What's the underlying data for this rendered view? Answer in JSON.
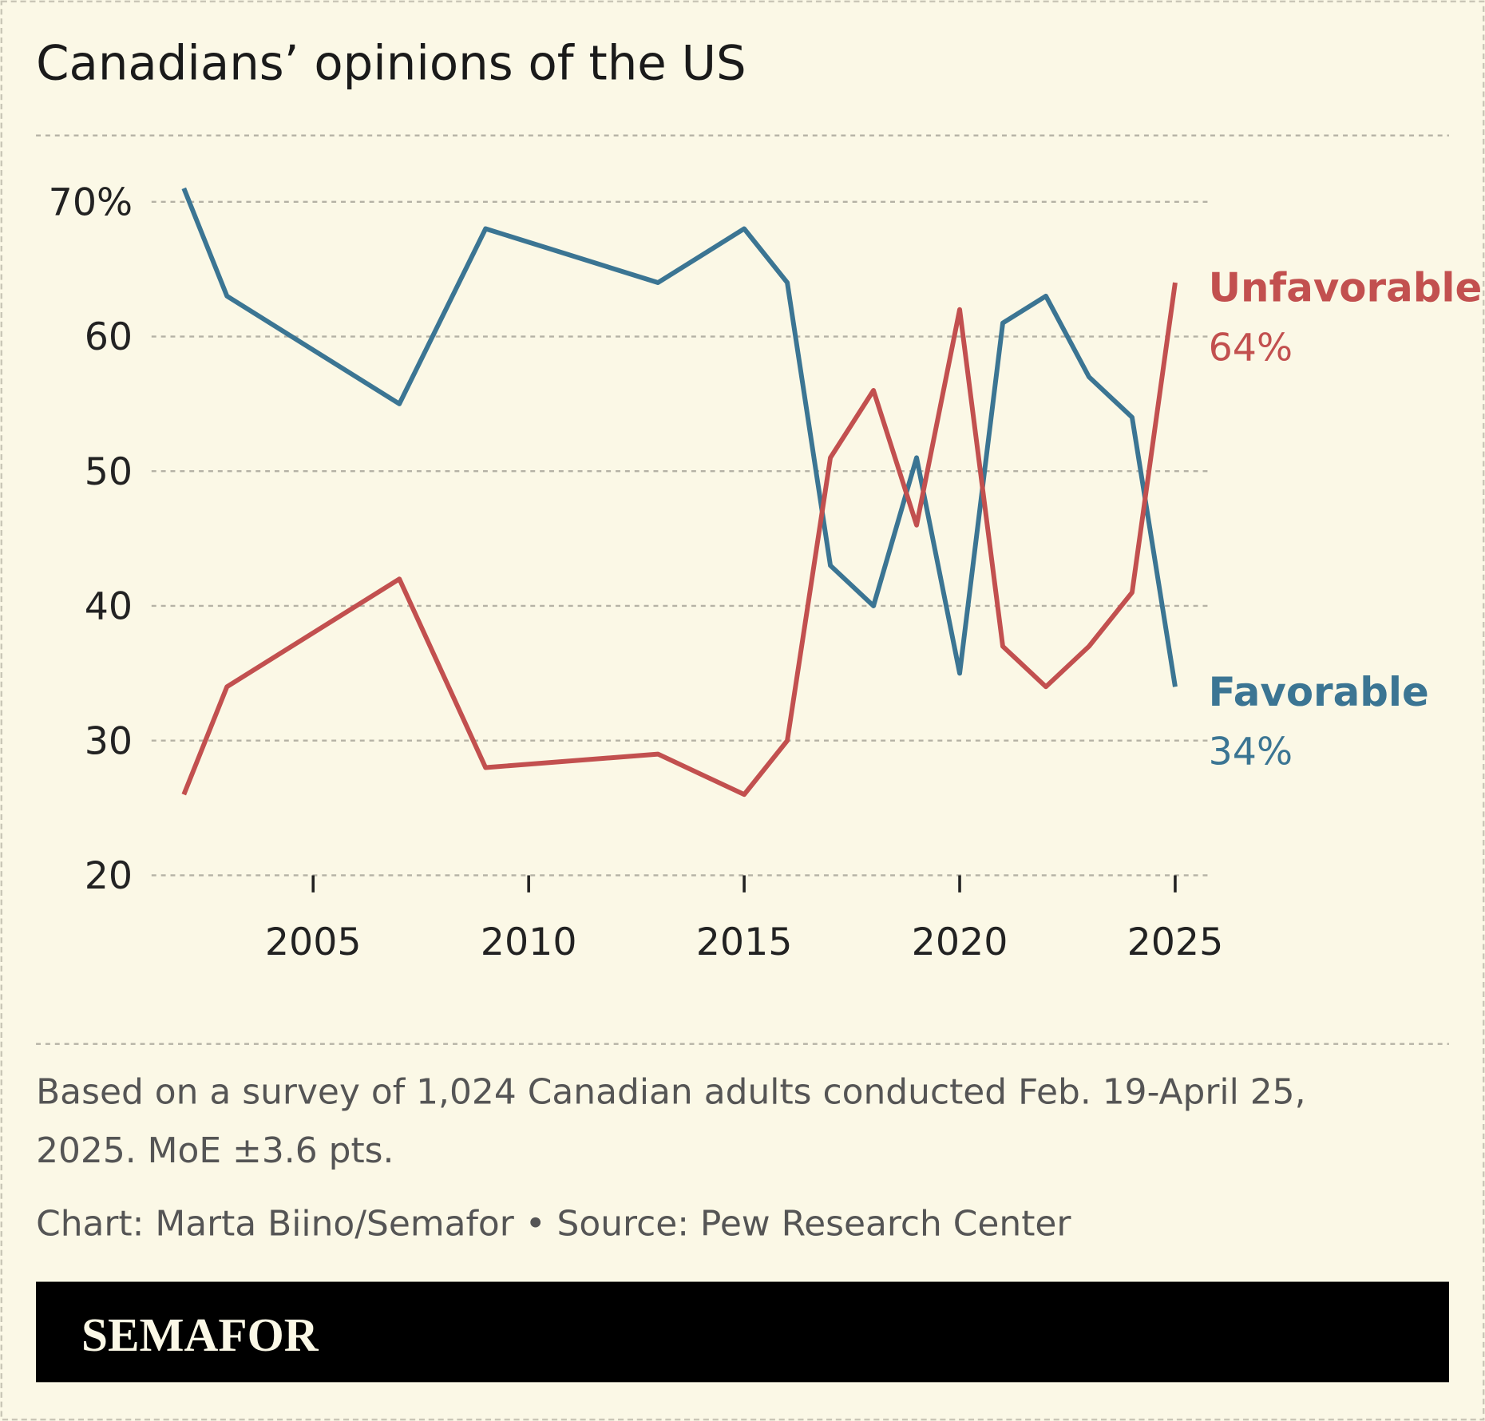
{
  "chart_data": {
    "type": "line",
    "title": "Canadians’ opinions of the US",
    "x": [
      2002,
      2003,
      2007,
      2009,
      2013,
      2015,
      2016,
      2017,
      2018,
      2019,
      2020,
      2021,
      2022,
      2023,
      2024,
      2025
    ],
    "series": [
      {
        "name": "Favorable",
        "color": "#3b7593",
        "values": [
          71,
          63,
          55,
          68,
          64,
          68,
          64,
          43,
          40,
          51,
          35,
          61,
          63,
          57,
          54,
          34
        ],
        "value_labels": [
          null,
          null,
          null,
          null,
          null,
          null,
          null,
          null,
          null,
          null,
          null,
          null,
          null,
          null,
          null,
          "34%"
        ]
      },
      {
        "name": "Unfavorable",
        "color": "#c2504f",
        "values": [
          26,
          34,
          42,
          28,
          29,
          26,
          30,
          51,
          56,
          46,
          62,
          37,
          34,
          37,
          41,
          64
        ],
        "value_labels": [
          null,
          null,
          null,
          null,
          null,
          null,
          null,
          null,
          null,
          null,
          null,
          null,
          null,
          null,
          null,
          "64%"
        ]
      }
    ],
    "xlim": [
      2001.25,
      2025.75
    ],
    "xticks": [
      2005,
      2010,
      2015,
      2020,
      2025
    ],
    "ylim": [
      20,
      70
    ],
    "yticks": [
      20,
      30,
      40,
      50,
      60,
      {
        "value": 70,
        "label": "70%"
      }
    ],
    "grid": true,
    "note": "Based on a survey of 1,024 Canadian adults conducted Feb. 19-April 25, 2025. MoE ±3.6 pts.",
    "credit": "Chart: Marta Biino/Semafor • Source: Pew Research Center",
    "logo": "SEMAFOR"
  }
}
